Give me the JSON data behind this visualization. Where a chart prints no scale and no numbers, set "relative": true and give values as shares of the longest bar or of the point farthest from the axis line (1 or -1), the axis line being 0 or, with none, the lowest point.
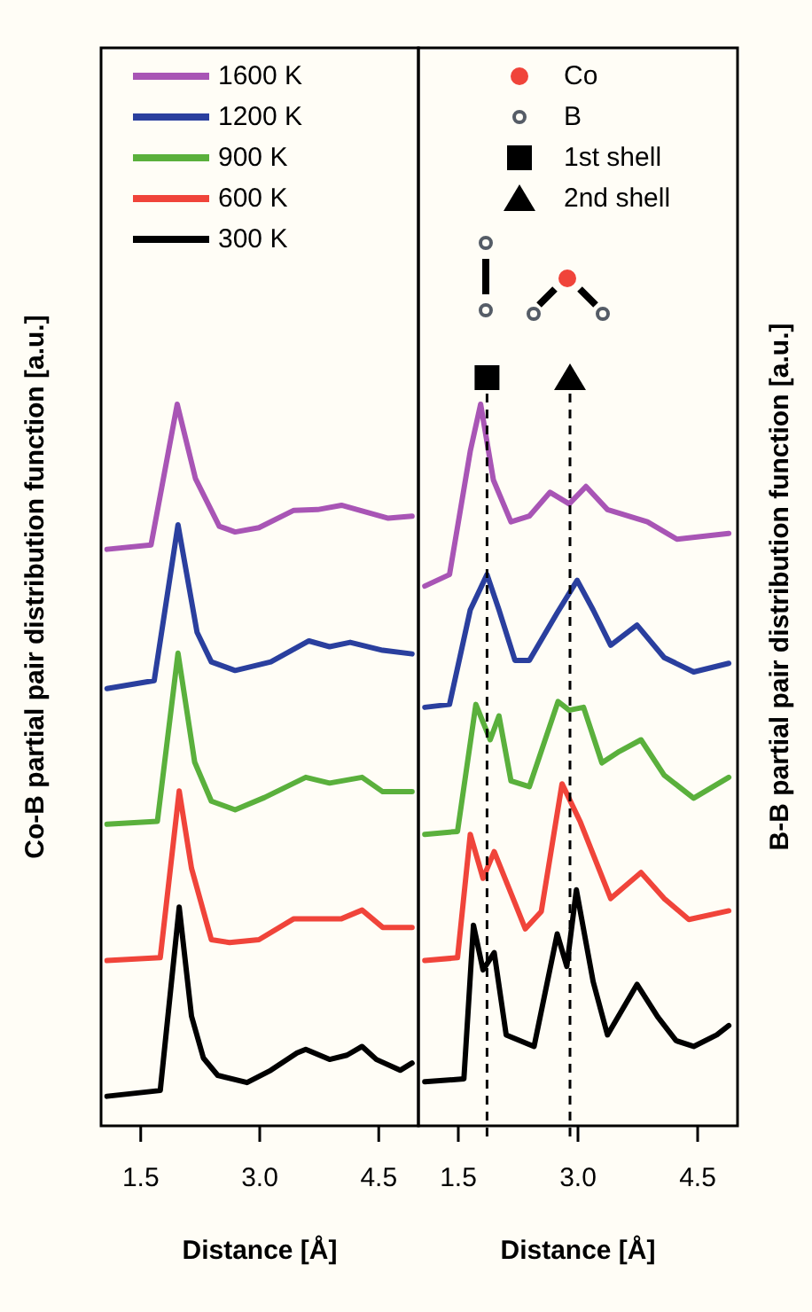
{
  "chart_data": [
    {
      "type": "line",
      "relative": true,
      "xlabel": "Distance [Å]",
      "ylabel": "Co-B partial pair distribution function [a.u.]",
      "xlim": [
        1.0,
        5.0
      ],
      "xticks": [
        {
          "value": 1.5,
          "label": "1.5"
        },
        {
          "value": 3.0,
          "label": "3.0"
        },
        {
          "value": 4.5,
          "label": "4.5"
        }
      ],
      "legend": "top left",
      "line_style": "solid",
      "marker": "none",
      "series": [
        {
          "name": "1600 K",
          "color": "#a855b5",
          "x": [
            1.075,
            1.63,
            1.96,
            2.19,
            2.49,
            2.69,
            2.99,
            3.43,
            3.73,
            4.03,
            4.33,
            4.62,
            4.92
          ],
          "values": [
            0.799,
            0.805,
            1.0,
            0.897,
            0.831,
            0.823,
            0.829,
            0.853,
            0.854,
            0.86,
            0.851,
            0.842,
            0.845
          ]
        },
        {
          "name": "1200 K",
          "color": "#2a3f9e",
          "x": [
            1.075,
            1.67,
            1.97,
            2.21,
            2.39,
            2.69,
            3.14,
            3.62,
            3.88,
            4.14,
            4.55,
            4.92
          ],
          "values": [
            0.606,
            0.617,
            0.833,
            0.684,
            0.643,
            0.631,
            0.643,
            0.672,
            0.664,
            0.67,
            0.659,
            0.654
          ]
        },
        {
          "name": "900 K",
          "color": "#5ab03c",
          "x": [
            1.075,
            1.71,
            1.97,
            2.18,
            2.39,
            2.69,
            3.06,
            3.58,
            3.88,
            4.29,
            4.55,
            4.92
          ],
          "values": [
            0.418,
            0.422,
            0.655,
            0.504,
            0.45,
            0.438,
            0.455,
            0.483,
            0.475,
            0.483,
            0.463,
            0.463
          ]
        },
        {
          "name": "600 K",
          "color": "#f0443a",
          "x": [
            1.075,
            1.746,
            1.985,
            2.14,
            2.39,
            2.62,
            2.99,
            3.43,
            4.03,
            4.29,
            4.55,
            4.92
          ],
          "values": [
            0.229,
            0.233,
            0.464,
            0.357,
            0.258,
            0.254,
            0.258,
            0.287,
            0.287,
            0.299,
            0.275,
            0.275
          ]
        },
        {
          "name": "300 K",
          "color": "#000000",
          "x": [
            1.075,
            1.746,
            1.985,
            2.14,
            2.29,
            2.47,
            2.84,
            3.14,
            3.47,
            3.58,
            3.88,
            4.1,
            4.29,
            4.47,
            4.77,
            4.92
          ],
          "values": [
            0.041,
            0.049,
            0.303,
            0.152,
            0.094,
            0.07,
            0.06,
            0.077,
            0.101,
            0.106,
            0.092,
            0.098,
            0.11,
            0.092,
            0.077,
            0.087
          ]
        }
      ]
    },
    {
      "type": "line",
      "relative": true,
      "xlabel": "Distance [Å]",
      "ylabel": "B-B partial pair distribution function [a.u.]",
      "xlim": [
        1.0,
        5.0
      ],
      "xticks": [
        {
          "value": 1.5,
          "label": "1.5"
        },
        {
          "value": 3.0,
          "label": "3.0"
        },
        {
          "value": 4.5,
          "label": "4.5"
        }
      ],
      "line_style": "solid",
      "marker": "none",
      "legend": "top",
      "annotations": [
        "Co",
        "B"
      ],
      "ref_lines": [
        {
          "axis": "x",
          "value": 1.86,
          "label": "1st shell",
          "color": "#000000",
          "line_style": "dashed"
        },
        {
          "axis": "x",
          "value": 2.9,
          "label": "2nd shell",
          "color": "#000000",
          "line_style": "dashed"
        }
      ],
      "series": [
        {
          "color": "#a855b5",
          "x": [
            1.08,
            1.39,
            1.65,
            1.78,
            1.94,
            2.16,
            2.39,
            2.65,
            2.89,
            3.1,
            3.37,
            3.87,
            4.24,
            4.89
          ],
          "values": [
            0.748,
            0.764,
            0.935,
            1.0,
            0.895,
            0.837,
            0.845,
            0.878,
            0.862,
            0.886,
            0.854,
            0.837,
            0.813,
            0.821
          ]
        },
        {
          "color": "#2a3f9e",
          "x": [
            1.08,
            1.39,
            1.65,
            1.86,
            2.01,
            2.21,
            2.39,
            2.74,
            2.99,
            3.19,
            3.41,
            3.74,
            4.08,
            4.45,
            4.89
          ],
          "values": [
            0.58,
            0.584,
            0.715,
            0.764,
            0.715,
            0.645,
            0.645,
            0.711,
            0.756,
            0.715,
            0.666,
            0.694,
            0.649,
            0.629,
            0.641
          ]
        },
        {
          "color": "#5ab03c",
          "x": [
            1.08,
            1.49,
            1.72,
            1.9,
            2.01,
            2.16,
            2.39,
            2.75,
            2.89,
            3.07,
            3.3,
            3.52,
            3.79,
            4.08,
            4.45,
            4.89
          ],
          "values": [
            0.404,
            0.408,
            0.584,
            0.535,
            0.568,
            0.478,
            0.47,
            0.588,
            0.576,
            0.58,
            0.503,
            0.519,
            0.535,
            0.486,
            0.454,
            0.483
          ]
        },
        {
          "color": "#f0443a",
          "x": [
            1.08,
            1.49,
            1.65,
            1.81,
            1.95,
            2.34,
            2.54,
            2.8,
            3.03,
            3.41,
            3.79,
            4.08,
            4.39,
            4.89
          ],
          "values": [
            0.229,
            0.233,
            0.404,
            0.343,
            0.38,
            0.273,
            0.297,
            0.474,
            0.421,
            0.315,
            0.351,
            0.315,
            0.286,
            0.298
          ]
        },
        {
          "color": "#000000",
          "x": [
            1.08,
            1.57,
            1.69,
            1.81,
            1.95,
            2.1,
            2.45,
            2.74,
            2.86,
            2.98,
            3.19,
            3.37,
            3.74,
            4.0,
            4.23,
            4.45,
            4.74,
            4.89
          ],
          "values": [
            0.061,
            0.065,
            0.278,
            0.216,
            0.24,
            0.126,
            0.11,
            0.266,
            0.221,
            0.327,
            0.2,
            0.126,
            0.196,
            0.151,
            0.118,
            0.11,
            0.126,
            0.139
          ]
        }
      ]
    }
  ]
}
